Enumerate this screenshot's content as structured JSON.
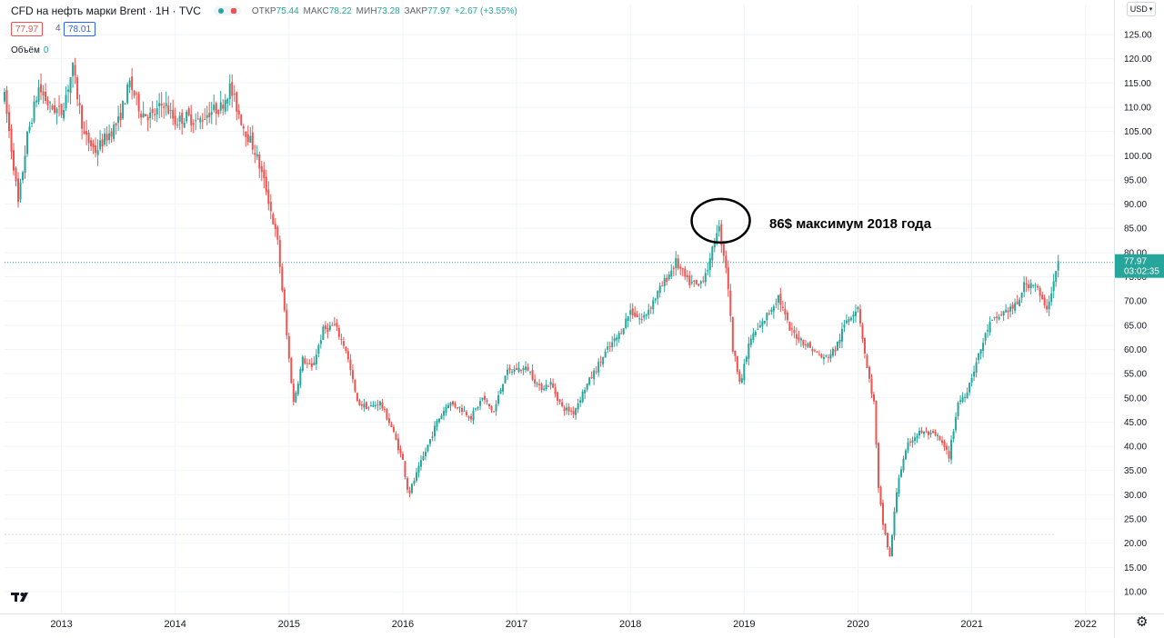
{
  "header": {
    "symbol": "CFD на нефть марки Brent · 1Н · TVC",
    "open_label": "ОТКР",
    "open": "75.44",
    "high_label": "МАКС",
    "high": "78.22",
    "low_label": "МИН",
    "low": "73.28",
    "close_label": "ЗАКР",
    "close": "77.97",
    "change": "+2.67 (+3.55%)"
  },
  "prices": {
    "bid": "77.97",
    "spread": "4",
    "ask": "78.01"
  },
  "volume": {
    "label": "Объём",
    "value": "0"
  },
  "currency": "USD",
  "annotation": "86$ максимум 2018 года",
  "last_price": {
    "value": "77.97",
    "countdown": "03:02:35"
  },
  "colors": {
    "up": "#26a69a",
    "down": "#ef5350",
    "grid": "#f0f3fa",
    "last_price": "#26a69a"
  },
  "icons": {
    "logo": "tradingview-logo-icon",
    "settings": "gear-icon",
    "currency_arrow": "chevron-down-icon"
  },
  "chart_data": {
    "type": "candlestick",
    "title": "CFD на нефть марки Brent · 1Н · TVC",
    "ylabel": "",
    "xlabel": "",
    "ylim": [
      5,
      130
    ],
    "xlim": [
      2012.5,
      2022.25
    ],
    "y_ticks": [
      "125.00",
      "120.00",
      "115.00",
      "110.00",
      "105.00",
      "100.00",
      "95.00",
      "90.00",
      "85.00",
      "80.00",
      "75.00",
      "70.00",
      "65.00",
      "60.00",
      "55.00",
      "50.00",
      "45.00",
      "40.00",
      "35.00",
      "30.00",
      "25.00",
      "20.00",
      "15.00",
      "10.00"
    ],
    "x_ticks": [
      "2013",
      "2014",
      "2015",
      "2016",
      "2017",
      "2018",
      "2019",
      "2020",
      "2021",
      "2022"
    ],
    "grid": true,
    "last_price": 77.97,
    "highlight": {
      "x": 2018.77,
      "y": 86,
      "label": "86$ максимум 2018 года"
    },
    "series_path": [
      [
        2012.5,
        112
      ],
      [
        2012.58,
        98
      ],
      [
        2012.62,
        90
      ],
      [
        2012.7,
        104
      ],
      [
        2012.8,
        114
      ],
      [
        2012.9,
        110
      ],
      [
        2013.0,
        109
      ],
      [
        2013.1,
        118
      ],
      [
        2013.2,
        104
      ],
      [
        2013.3,
        101
      ],
      [
        2013.4,
        104
      ],
      [
        2013.5,
        107
      ],
      [
        2013.6,
        115
      ],
      [
        2013.7,
        109
      ],
      [
        2013.8,
        108
      ],
      [
        2013.9,
        111
      ],
      [
        2014.0,
        107
      ],
      [
        2014.1,
        108
      ],
      [
        2014.2,
        107
      ],
      [
        2014.3,
        109
      ],
      [
        2014.4,
        110
      ],
      [
        2014.48,
        114
      ],
      [
        2014.6,
        106
      ],
      [
        2014.7,
        101
      ],
      [
        2014.8,
        93
      ],
      [
        2014.9,
        82
      ],
      [
        2015.0,
        58
      ],
      [
        2015.04,
        49
      ],
      [
        2015.12,
        58
      ],
      [
        2015.2,
        56
      ],
      [
        2015.3,
        64
      ],
      [
        2015.4,
        65
      ],
      [
        2015.5,
        60
      ],
      [
        2015.6,
        49
      ],
      [
        2015.7,
        48
      ],
      [
        2015.8,
        49
      ],
      [
        2015.9,
        44
      ],
      [
        2016.0,
        37
      ],
      [
        2016.05,
        30
      ],
      [
        2016.15,
        36
      ],
      [
        2016.3,
        45
      ],
      [
        2016.4,
        49
      ],
      [
        2016.5,
        48
      ],
      [
        2016.6,
        46
      ],
      [
        2016.7,
        50
      ],
      [
        2016.8,
        47
      ],
      [
        2016.9,
        55
      ],
      [
        2017.0,
        56
      ],
      [
        2017.1,
        56
      ],
      [
        2017.2,
        52
      ],
      [
        2017.3,
        53
      ],
      [
        2017.4,
        48
      ],
      [
        2017.5,
        47
      ],
      [
        2017.6,
        52
      ],
      [
        2017.7,
        56
      ],
      [
        2017.8,
        60
      ],
      [
        2017.9,
        63
      ],
      [
        2018.0,
        68
      ],
      [
        2018.1,
        66
      ],
      [
        2018.2,
        70
      ],
      [
        2018.3,
        74
      ],
      [
        2018.4,
        78
      ],
      [
        2018.5,
        74
      ],
      [
        2018.6,
        73
      ],
      [
        2018.7,
        78
      ],
      [
        2018.77,
        86
      ],
      [
        2018.85,
        76
      ],
      [
        2018.9,
        60
      ],
      [
        2018.97,
        53
      ],
      [
        2019.05,
        62
      ],
      [
        2019.15,
        65
      ],
      [
        2019.3,
        71
      ],
      [
        2019.4,
        64
      ],
      [
        2019.5,
        62
      ],
      [
        2019.6,
        60
      ],
      [
        2019.7,
        58
      ],
      [
        2019.8,
        60
      ],
      [
        2019.9,
        66
      ],
      [
        2020.0,
        69
      ],
      [
        2020.08,
        56
      ],
      [
        2020.14,
        49
      ],
      [
        2020.18,
        31
      ],
      [
        2020.22,
        24
      ],
      [
        2020.28,
        17
      ],
      [
        2020.35,
        33
      ],
      [
        2020.45,
        41
      ],
      [
        2020.55,
        43
      ],
      [
        2020.7,
        42
      ],
      [
        2020.8,
        38
      ],
      [
        2020.88,
        49
      ],
      [
        2020.95,
        51
      ],
      [
        2021.05,
        58
      ],
      [
        2021.15,
        65
      ],
      [
        2021.3,
        68
      ],
      [
        2021.4,
        69
      ],
      [
        2021.45,
        73
      ],
      [
        2021.55,
        74
      ],
      [
        2021.65,
        68
      ],
      [
        2021.7,
        72
      ],
      [
        2021.76,
        77.97
      ]
    ]
  }
}
